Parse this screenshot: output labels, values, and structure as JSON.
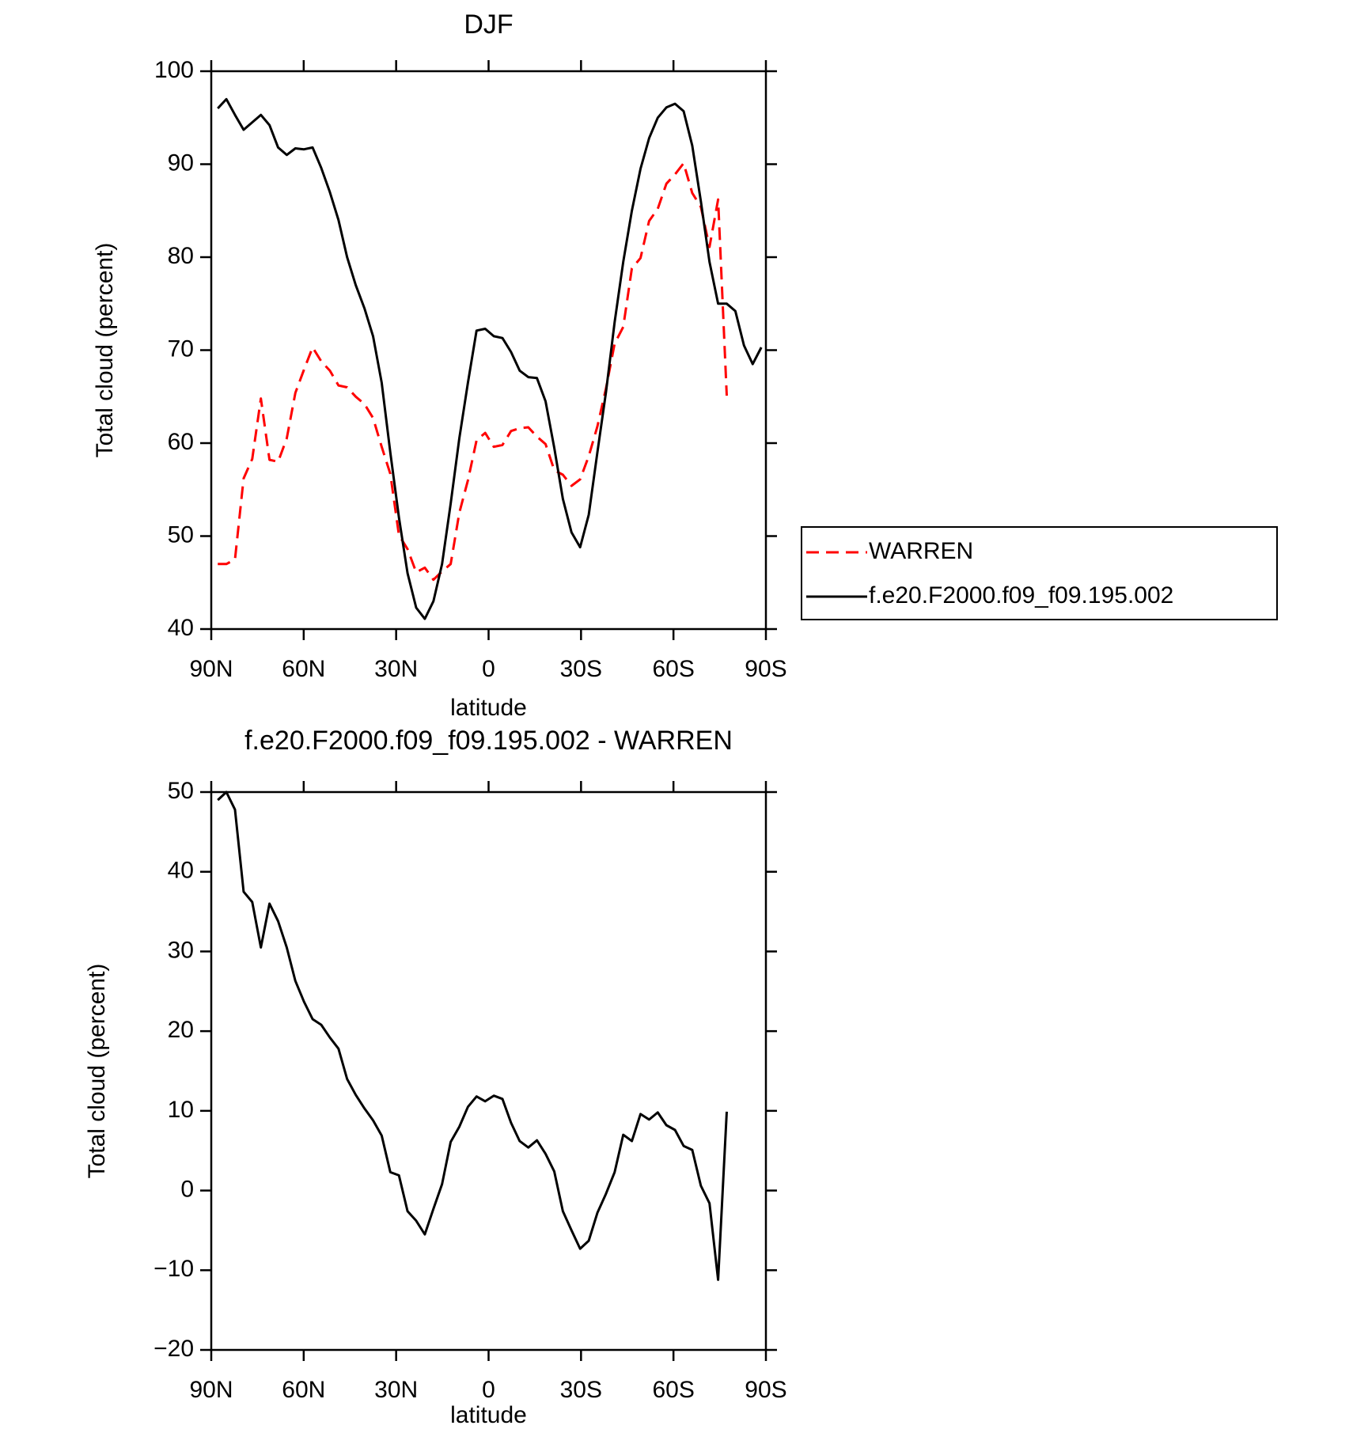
{
  "chart_data": [
    {
      "type": "line",
      "title": "DJF",
      "xlabel": "latitude",
      "ylabel": "Total cloud (percent)",
      "xlim": [
        90,
        -90
      ],
      "ylim": [
        40,
        100
      ],
      "xticks": [
        {
          "value": 90,
          "label": "90N"
        },
        {
          "value": 60,
          "label": "60N"
        },
        {
          "value": 30,
          "label": "30N"
        },
        0,
        {
          "value": -30,
          "label": "30S"
        },
        {
          "value": -60,
          "label": "60S"
        },
        {
          "value": -90,
          "label": "90S"
        }
      ],
      "yticks": [
        40,
        50,
        60,
        70,
        80,
        90,
        100
      ],
      "legend": "right",
      "x": [
        87.9,
        85.1,
        82.3,
        79.5,
        76.7,
        73.9,
        71.1,
        68.3,
        65.5,
        62.7,
        59.9,
        57.1,
        54.3,
        51.5,
        48.7,
        45.9,
        43.1,
        40.3,
        37.5,
        34.7,
        31.9,
        29.1,
        26.3,
        23.5,
        20.7,
        17.9,
        15.1,
        12.3,
        9.5,
        6.7,
        3.9,
        1.1,
        -1.7,
        -4.5,
        -7.3,
        -10.1,
        -12.9,
        -15.7,
        -18.5,
        -21.3,
        -24.1,
        -26.9,
        -29.7,
        -32.5,
        -35.3,
        -38.1,
        -40.9,
        -43.7,
        -46.5,
        -49.3,
        -52.1,
        -54.9,
        -57.7,
        -60.5,
        -63.3,
        -66.1,
        -68.9,
        -71.7,
        -74.5,
        -77.3,
        -80.1,
        -82.9,
        -85.7,
        -88.5
      ],
      "series": [
        {
          "name": "WARREN",
          "color": "#ff0000",
          "style": "dashed",
          "values": [
            47,
            47,
            47.5,
            56.2,
            58.3,
            64.8,
            58.2,
            58,
            60.5,
            65.4,
            67.9,
            70.3,
            68.8,
            67.8,
            66.2,
            66,
            65,
            64.2,
            62.7,
            59.6,
            56.7,
            50.1,
            48.6,
            46.1,
            46.6,
            45.3,
            46.2,
            47,
            52.5,
            56,
            60.3,
            61.1,
            59.6,
            59.8,
            61.3,
            61.6,
            61.7,
            60.7,
            59.9,
            57.1,
            56.6,
            55.4,
            56.1,
            58.6,
            61.8,
            65.9,
            70.7,
            72.5,
            78.8,
            79.9,
            83.9,
            85.2,
            87.9,
            88.9,
            90.1,
            86.9,
            85.4,
            81.1,
            86.2,
            65.1,
            null,
            null,
            null,
            null
          ]
        },
        {
          "name": "f.e20.F2000.f09_f09.195.002",
          "color": "#000000",
          "style": "solid",
          "values": [
            96,
            97,
            95.3,
            93.7,
            94.5,
            95.3,
            94.2,
            91.8,
            91,
            91.7,
            91.6,
            91.8,
            89.6,
            87,
            84,
            80,
            77,
            74.5,
            71.5,
            66.5,
            59,
            52,
            46,
            42.3,
            41.1,
            43,
            47,
            53.5,
            60.5,
            66.5,
            72.1,
            72.3,
            71.5,
            71.3,
            69.8,
            67.8,
            67.1,
            67,
            64.5,
            59.5,
            54,
            50.4,
            48.8,
            52.3,
            59,
            65.5,
            73,
            79.5,
            85,
            89.5,
            92.8,
            95,
            96.1,
            96.5,
            95.7,
            92,
            86,
            79.5,
            75,
            75,
            74.2,
            70.5,
            68.5,
            70.3
          ]
        }
      ]
    },
    {
      "type": "line",
      "title": "f.e20.F2000.f09_f09.195.002 - WARREN",
      "xlabel": "latitude",
      "ylabel": "Total cloud (percent)",
      "xlim": [
        90,
        -90
      ],
      "ylim": [
        -20,
        50
      ],
      "xticks": [
        {
          "value": 90,
          "label": "90N"
        },
        {
          "value": 60,
          "label": "60N"
        },
        {
          "value": 30,
          "label": "30N"
        },
        0,
        {
          "value": -30,
          "label": "30S"
        },
        {
          "value": -60,
          "label": "60S"
        },
        {
          "value": -90,
          "label": "90S"
        }
      ],
      "yticks": [
        {
          "value": -20,
          "label": "−20"
        },
        {
          "value": -10,
          "label": "−10"
        },
        0,
        10,
        20,
        30,
        40,
        50
      ],
      "color": "#000000",
      "x": [
        87.9,
        85.1,
        82.3,
        79.5,
        76.7,
        73.9,
        71.1,
        68.3,
        65.5,
        62.7,
        59.9,
        57.1,
        54.3,
        51.5,
        48.7,
        45.9,
        43.1,
        40.3,
        37.5,
        34.7,
        31.9,
        29.1,
        26.3,
        23.5,
        20.7,
        17.9,
        15.1,
        12.3,
        9.5,
        6.7,
        3.9,
        1.1,
        -1.7,
        -4.5,
        -7.3,
        -10.1,
        -12.9,
        -15.7,
        -18.5,
        -21.3,
        -24.1,
        -26.9,
        -29.7,
        -32.5,
        -35.3,
        -38.1,
        -40.9,
        -43.7,
        -46.5,
        -49.3,
        -52.1,
        -54.9,
        -57.7,
        -60.5,
        -63.3,
        -66.1,
        -68.9,
        -71.7,
        -74.5,
        -77.3,
        -80.1,
        -82.9,
        -85.7,
        -88.5
      ],
      "values": [
        49,
        50,
        47.8,
        37.5,
        36.2,
        30.5,
        36,
        33.8,
        30.5,
        26.3,
        23.7,
        21.5,
        20.8,
        19.2,
        17.8,
        14,
        12,
        10.3,
        8.8,
        6.9,
        2.3,
        1.9,
        -2.6,
        -3.8,
        -5.5,
        -2.3,
        0.8,
        6.1,
        8,
        10.5,
        11.8,
        11.2,
        11.9,
        11.5,
        8.5,
        6.2,
        5.4,
        6.3,
        4.6,
        2.4,
        -2.6,
        -5,
        -7.3,
        -6.3,
        -2.8,
        -0.4,
        2.3,
        7,
        6.2,
        9.6,
        8.9,
        9.8,
        8.2,
        7.6,
        5.6,
        5.1,
        0.6,
        -1.6,
        -11.2,
        9.9,
        null,
        null,
        null,
        null
      ]
    }
  ]
}
